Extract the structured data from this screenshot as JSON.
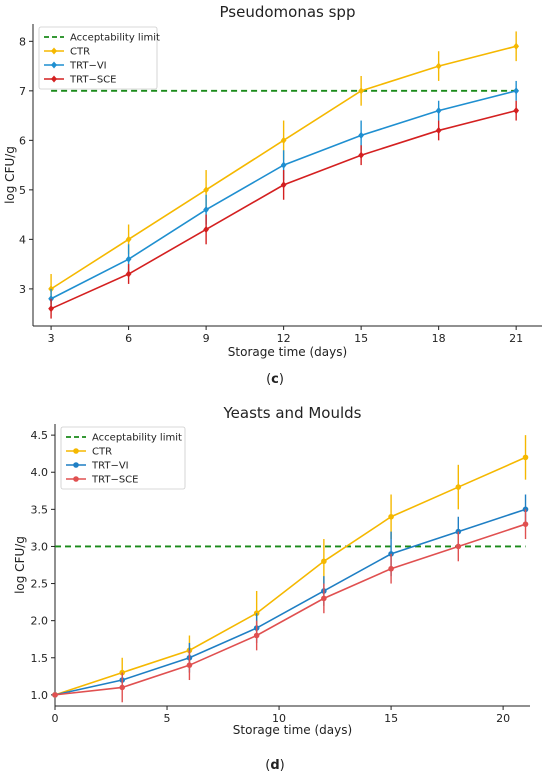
{
  "chart_data": [
    {
      "type": "line",
      "title": "Pseudomonas spp",
      "xlabel": "Storage time (days)",
      "ylabel": "log CFU/g",
      "panel_label": {
        "open": "(",
        "letter": "c",
        "close": ")"
      },
      "x": [
        3,
        6,
        9,
        12,
        15,
        18,
        21
      ],
      "xticks": [
        3,
        6,
        9,
        12,
        15,
        18,
        21
      ],
      "yticks": [
        3,
        4,
        5,
        6,
        7,
        8
      ],
      "xlim": [
        2.3,
        22.0
      ],
      "ylim": [
        2.25,
        8.35
      ],
      "grid": false,
      "legend": "top-left",
      "threshold": {
        "name": "Acceptability limit",
        "value": 7,
        "color": "#1a8a1a"
      },
      "series": [
        {
          "name": "CTR",
          "color": "#f5b800",
          "marker": "diamond",
          "values": [
            3.0,
            4.0,
            5.0,
            6.0,
            7.0,
            7.5,
            7.9
          ],
          "errors": [
            0.3,
            0.3,
            0.4,
            0.4,
            0.3,
            0.3,
            0.3
          ]
        },
        {
          "name": "TRT−VI",
          "color": "#1f8fd0",
          "marker": "diamond",
          "values": [
            2.8,
            3.6,
            4.6,
            5.5,
            6.1,
            6.6,
            7.0
          ],
          "errors": [
            0.2,
            0.3,
            0.3,
            0.3,
            0.3,
            0.2,
            0.2
          ]
        },
        {
          "name": "TRT−SCE",
          "color": "#d42020",
          "marker": "diamond",
          "values": [
            2.6,
            3.3,
            4.2,
            5.1,
            5.7,
            6.2,
            6.6
          ],
          "errors": [
            0.2,
            0.2,
            0.3,
            0.3,
            0.2,
            0.2,
            0.2
          ]
        }
      ]
    },
    {
      "type": "line",
      "title": "Yeasts and Moulds",
      "xlabel": "Storage time (days)",
      "ylabel": "log CFU/g",
      "panel_label": {
        "open": "(",
        "letter": "d",
        "close": ")"
      },
      "x": [
        0,
        3,
        6,
        9,
        12,
        15,
        18,
        21
      ],
      "xticks": [
        0,
        5,
        10,
        15,
        20
      ],
      "yticks": [
        1.0,
        1.5,
        2.0,
        2.5,
        3.0,
        3.5,
        4.0,
        4.5
      ],
      "ytick_labels": [
        "1.0",
        "1.5",
        "2.0",
        "2.5",
        "3.0",
        "3.5",
        "4.0",
        "4.5"
      ],
      "xlim": [
        0,
        21.2
      ],
      "ylim": [
        0.85,
        4.65
      ],
      "grid": false,
      "legend": "top-left",
      "threshold": {
        "name": "Acceptability limit",
        "value": 3.0,
        "color": "#1a8a1a"
      },
      "series": [
        {
          "name": "CTR",
          "color": "#f5b800",
          "marker": "circle",
          "values": [
            1.0,
            1.3,
            1.6,
            2.1,
            2.8,
            3.4,
            3.8,
            4.2
          ],
          "errors": [
            0.0,
            0.2,
            0.2,
            0.3,
            0.3,
            0.3,
            0.3,
            0.3
          ]
        },
        {
          "name": "TRT−VI",
          "color": "#1f7fc4",
          "marker": "circle",
          "values": [
            1.0,
            1.2,
            1.5,
            1.9,
            2.4,
            2.9,
            3.2,
            3.5
          ],
          "errors": [
            0.0,
            0.1,
            0.2,
            0.2,
            0.2,
            0.3,
            0.2,
            0.2
          ]
        },
        {
          "name": "TRT−SCE",
          "color": "#e05050",
          "marker": "circle",
          "values": [
            1.0,
            1.1,
            1.4,
            1.8,
            2.3,
            2.7,
            3.0,
            3.3
          ],
          "errors": [
            0.0,
            0.2,
            0.2,
            0.2,
            0.2,
            0.2,
            0.2,
            0.2
          ]
        }
      ]
    }
  ]
}
